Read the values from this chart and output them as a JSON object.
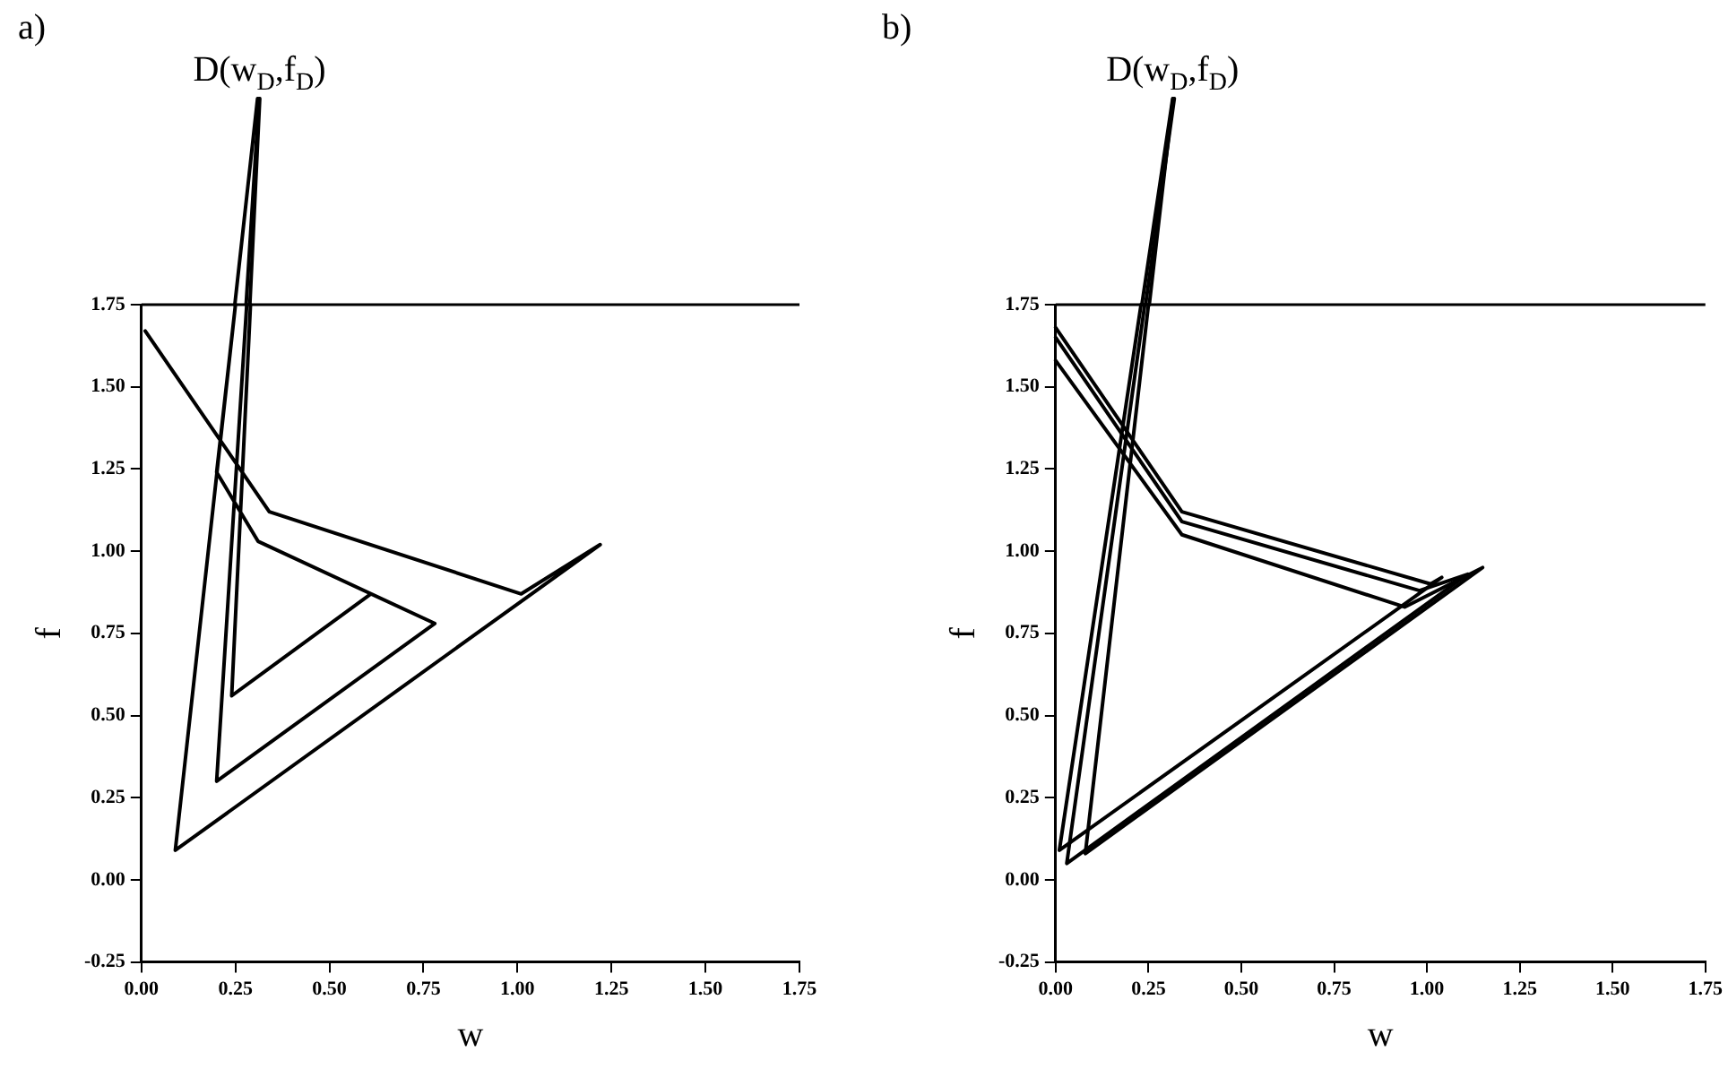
{
  "chart_data": [
    {
      "type": "line",
      "title": "a)",
      "xlabel": "w",
      "ylabel": "f",
      "annotations": [
        "D(w$_{D}$,f$_{D}$)"
      ],
      "xlim": [
        0,
        1.75
      ],
      "ylim": [
        -0.25,
        1.75
      ],
      "xticks": [
        {
          "value": 0,
          "label": "0.00"
        },
        {
          "value": 0.25,
          "label": "0.25"
        },
        {
          "value": 0.5,
          "label": "0.50"
        },
        {
          "value": 0.75,
          "label": "0.75"
        },
        {
          "value": 1,
          "label": "1.00"
        },
        {
          "value": 1.25,
          "label": "1.25"
        },
        {
          "value": 1.5,
          "label": "1.50"
        },
        {
          "value": 1.75,
          "label": "1.75"
        }
      ],
      "yticks": [
        {
          "value": -0.25,
          "label": "-0.25"
        },
        {
          "value": 0,
          "label": "0.00"
        },
        {
          "value": 0.25,
          "label": "0.25"
        },
        {
          "value": 0.5,
          "label": "0.50"
        },
        {
          "value": 0.75,
          "label": "0.75"
        },
        {
          "value": 1,
          "label": "1.00"
        },
        {
          "value": 1.25,
          "label": "1.25"
        },
        {
          "value": 1.5,
          "label": "1.50"
        },
        {
          "value": 1.75,
          "label": "1.75"
        }
      ],
      "grid": false,
      "legend": false,
      "series": [
        {
          "color": "#000000",
          "x": [
            0.01,
            0.34,
            1.01,
            1.22,
            0.09,
            0.25,
            0.2,
            0.31,
            0.78,
            0.2,
            0.28,
            0.2,
            0.78,
            0.61,
            0.24,
            0.29
          ],
          "values": [
            1.67,
            1.12,
            0.87,
            1.02,
            0.09,
            1.75,
            1.24,
            1.03,
            0.78,
            0.3,
            1.75,
            0.3,
            0.78,
            0.87,
            0.56,
            1.75
          ]
        }
      ]
    },
    {
      "type": "line",
      "title": "b)",
      "xlabel": "w",
      "ylabel": "f",
      "annotations": [
        "D(w$_{D}$,f$_{D}$)"
      ],
      "xlim": [
        0,
        1.75
      ],
      "ylim": [
        -0.25,
        1.75
      ],
      "xticks": [
        {
          "value": 0,
          "label": "0.00"
        },
        {
          "value": 0.25,
          "label": "0.25"
        },
        {
          "value": 0.5,
          "label": "0.50"
        },
        {
          "value": 0.75,
          "label": "0.75"
        },
        {
          "value": 1,
          "label": "1.00"
        },
        {
          "value": 1.25,
          "label": "1.25"
        },
        {
          "value": 1.5,
          "label": "1.50"
        },
        {
          "value": 1.75,
          "label": "1.75"
        }
      ],
      "yticks": [
        {
          "value": -0.25,
          "label": "-0.25"
        },
        {
          "value": 0,
          "label": "0.00"
        },
        {
          "value": 0.25,
          "label": "0.25"
        },
        {
          "value": 0.5,
          "label": "0.50"
        },
        {
          "value": 0.75,
          "label": "0.75"
        },
        {
          "value": 1,
          "label": "1.00"
        },
        {
          "value": 1.25,
          "label": "1.25"
        },
        {
          "value": 1.5,
          "label": "1.50"
        },
        {
          "value": 1.75,
          "label": "1.75"
        }
      ],
      "grid": false,
      "legend": false,
      "series": [
        {
          "color": "#000000",
          "x": [
            0.0,
            0.34,
            1.01,
            1.04,
            0.01,
            0.23
          ],
          "values": [
            1.68,
            1.12,
            0.9,
            0.92,
            0.09,
            1.75
          ]
        },
        {
          "color": "#000000",
          "x": [
            0.0,
            0.34,
            0.98,
            1.11,
            0.03,
            0.24
          ],
          "values": [
            1.65,
            1.09,
            0.88,
            0.93,
            0.05,
            1.75
          ]
        },
        {
          "color": "#000000",
          "x": [
            0.0,
            0.34,
            0.94,
            1.15,
            0.08,
            0.25
          ],
          "values": [
            1.58,
            1.05,
            0.83,
            0.95,
            0.08,
            1.75
          ]
        }
      ]
    }
  ]
}
